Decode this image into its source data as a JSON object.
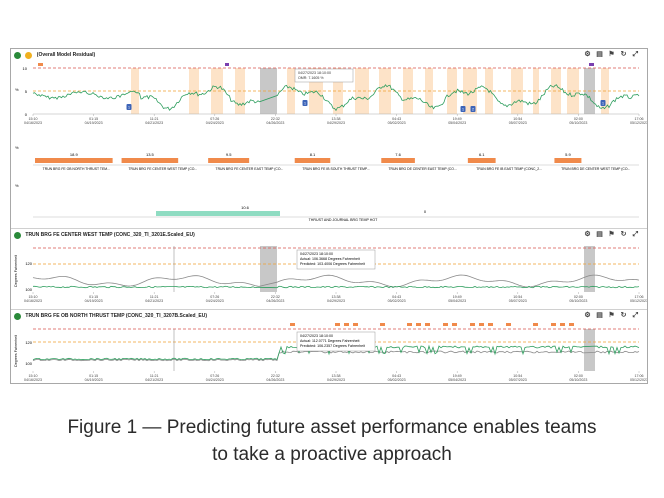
{
  "panel1": {
    "title": "(Overall Model Residual)",
    "y_ticks": [
      "10",
      "5",
      "0"
    ],
    "y_unit": "%",
    "tooltip_lines": [
      "04/27/2023 18:10:00",
      "OMR: 7.1605 %"
    ],
    "times": [
      "15:10",
      "01:15",
      "11:21",
      "07:26",
      "22:32",
      "13:38",
      "04:43",
      "19:49",
      "10:54",
      "02:00",
      "17:06"
    ],
    "dates": [
      "04/16/2023",
      "04/19/2023",
      "04/21/2023",
      "04/24/2023",
      "04/26/2023",
      "04/29/2023",
      "05/02/2023",
      "05/04/2023",
      "05/07/2023",
      "05/10/2023",
      "05/12/2023"
    ],
    "badges": [
      "1",
      "1",
      "1",
      "2",
      "1"
    ]
  },
  "bars": {
    "upper_values": [
      "18.9",
      "13.5",
      "9.5",
      "8.1",
      "7.6",
      "6.1",
      "5.9"
    ],
    "upper_labels": [
      "TRUN BRG FE OB NORTH THRUST TEM...",
      "TRUN BRG FE CENTER WEST TEMP (CO...",
      "TRUN BRG FE CENTER EAST TEMP (CO...",
      "TRUN BRG FE IB SOUTH THRUST TEMP...",
      "TRUN BRG DE CENTER EAST TEMP (CO...",
      "TRUN BRG FE IB EAST TEMP (CONC_2...",
      "TRUN BRG DE CENTER WEST TEMP (CO..."
    ],
    "upper_axis": "%",
    "lower_values": [
      "10.6",
      "0"
    ],
    "lower_label": "THRUST AND JOURNAL BRG TEMP HOT",
    "lower_axis": "%"
  },
  "panel2": {
    "title": "TRUN BRG FE CENTER WEST TEMP (CONC_320_TI_3201E.Scaled_EU)",
    "y_ticks": [
      "120",
      "100"
    ],
    "y_label": "Degrees Fahrenheit",
    "tooltip_lines": [
      "04/27/2023 18:10:00",
      "Actual: 106.3668 Degrees Fahrenheit",
      "Predicted: 103.4006 Degrees Fahrenheit"
    ]
  },
  "panel3": {
    "title": "TRUN BRG FE OB NORTH THRUST TEMP (CONC_320_TI_3207B.Scaled_EU)",
    "y_ticks": [
      "120",
      "100"
    ],
    "y_label": "Degrees Fahrenheit",
    "tooltip_lines": [
      "04/27/2023 18:10:00",
      "Actual: 112.0771 Degrees Fahrenheit",
      "Predicted: 106.2357 Degrees Fahrenheit"
    ]
  },
  "caption": {
    "line1": "Figure 1 — Predicting future asset performance enables teams",
    "line2": "to take a proactive approach"
  },
  "colors": {
    "actual": "#2e9e5e",
    "predicted": "#8a8a8a",
    "upper_limit": "#d9534f",
    "lower_limit": "#f0a030",
    "highlight_band": "#fde3c8",
    "gray_band": "#c8c8c8",
    "orange_bar": "#f08a4b",
    "teal_bar": "#8fdcc2",
    "badge": "#3d64b8",
    "status": "#2a8a3a"
  },
  "icons": [
    "check-circle-icon",
    "eye-icon",
    "gear-icon",
    "chart-icon",
    "flag-icon",
    "lasso-icon",
    "expand-icon"
  ]
}
